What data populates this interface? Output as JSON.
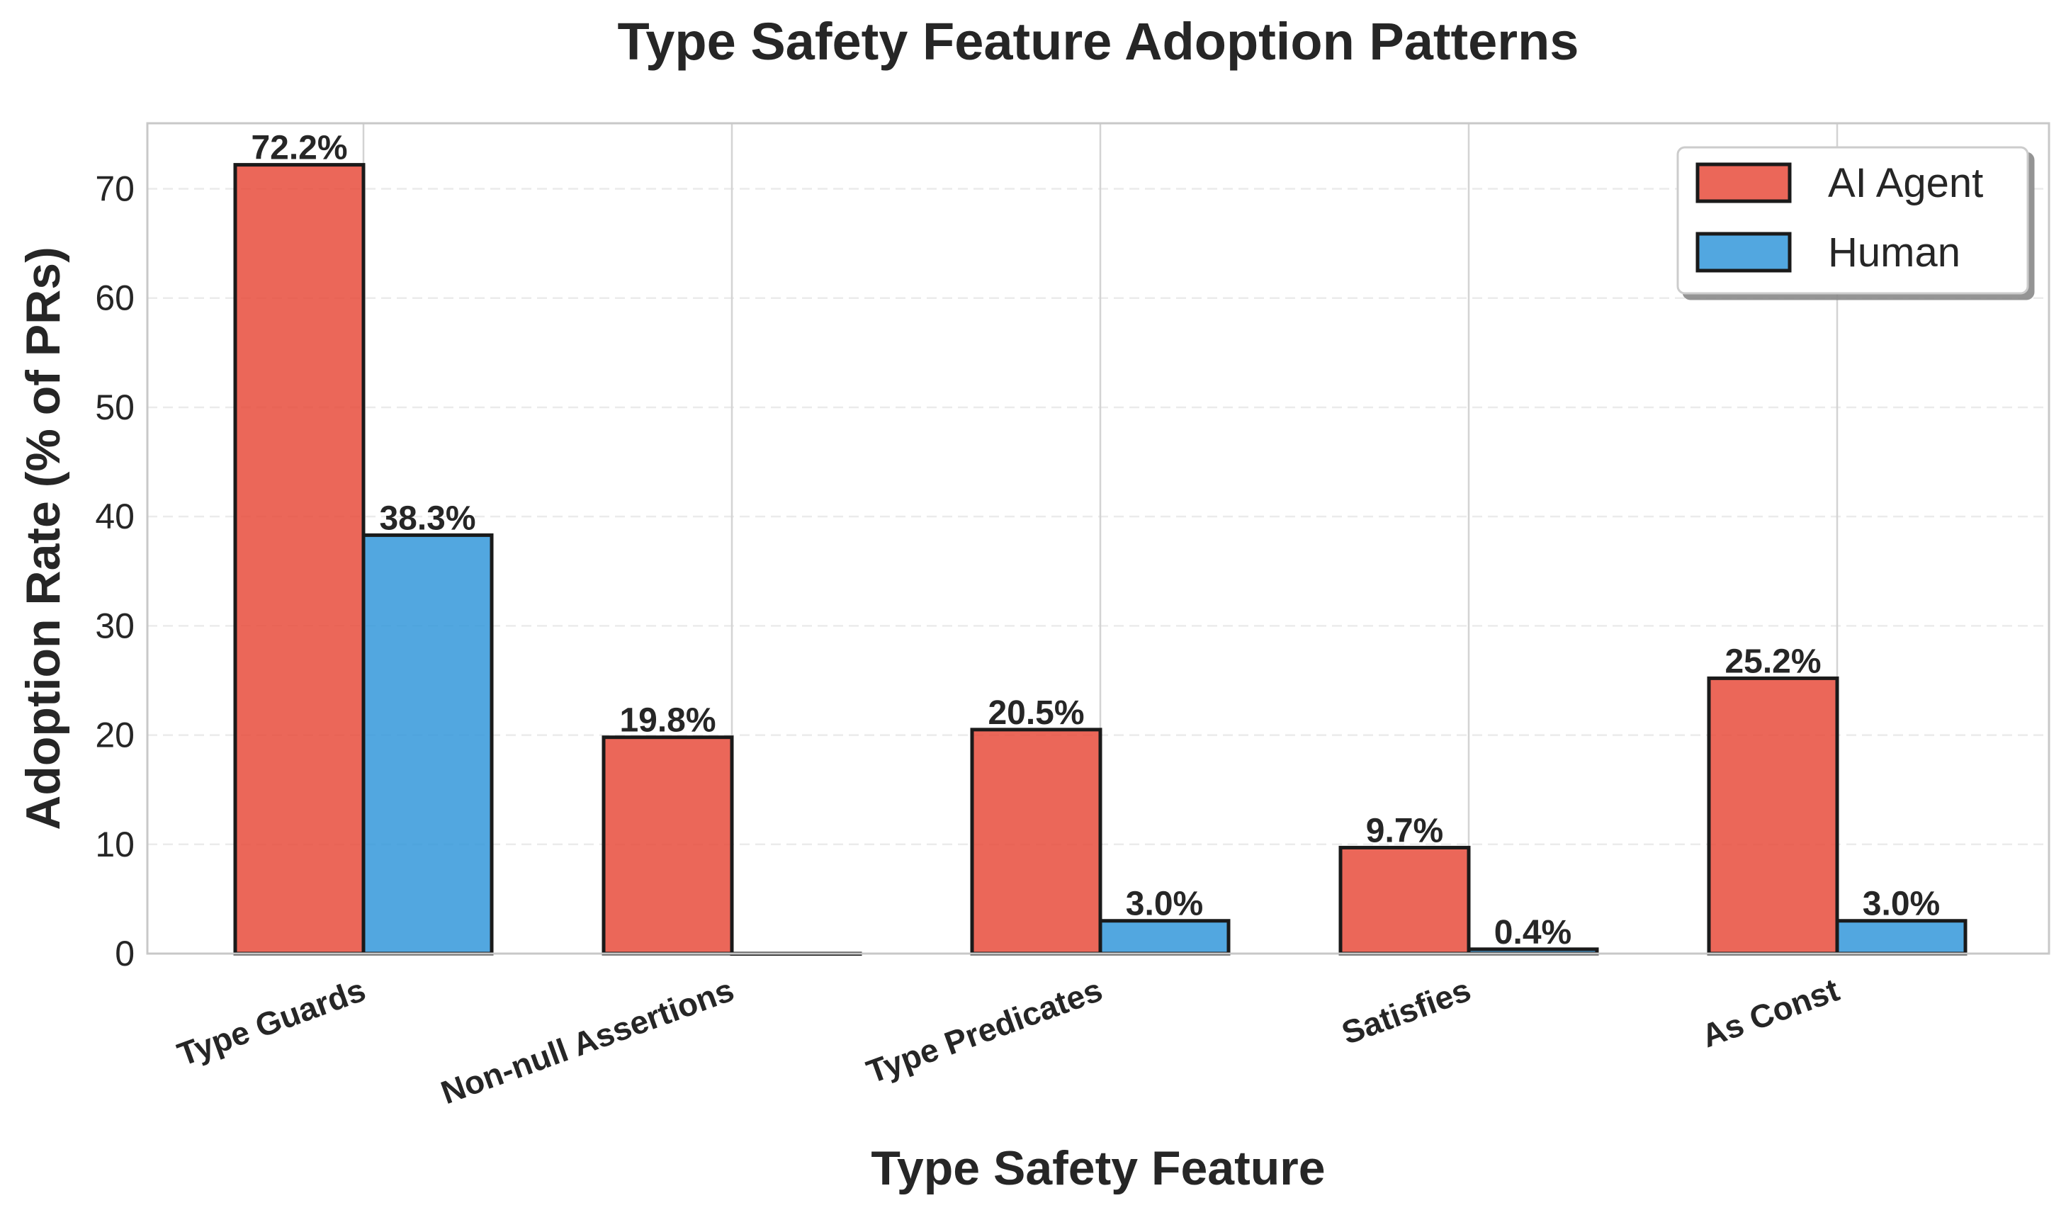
{
  "chart_data": {
    "type": "bar",
    "title": "Type Safety Feature Adoption Patterns",
    "xlabel": "Type Safety Feature",
    "ylabel": "Adoption Rate (% of PRs)",
    "categories": [
      "Type Guards",
      "Non-null Assertions",
      "Type Predicates",
      "Satisfies",
      "As Const"
    ],
    "series": [
      {
        "name": "AI Agent",
        "color": "#e74c3c",
        "values": [
          72.2,
          19.8,
          20.5,
          9.7,
          25.2
        ],
        "labels": [
          "72.2%",
          "19.8%",
          "20.5%",
          "9.7%",
          "25.2%"
        ]
      },
      {
        "name": "Human",
        "color": "#3498db",
        "values": [
          38.3,
          0.0,
          3.0,
          0.4,
          3.0
        ],
        "labels": [
          "38.3%",
          "",
          "3.0%",
          "0.4%",
          "3.0%"
        ]
      }
    ],
    "ylim": [
      0,
      76
    ],
    "yticks": [
      0,
      10,
      20,
      30,
      40,
      50,
      60,
      70
    ],
    "grid": true,
    "legend_position": "top-right"
  }
}
